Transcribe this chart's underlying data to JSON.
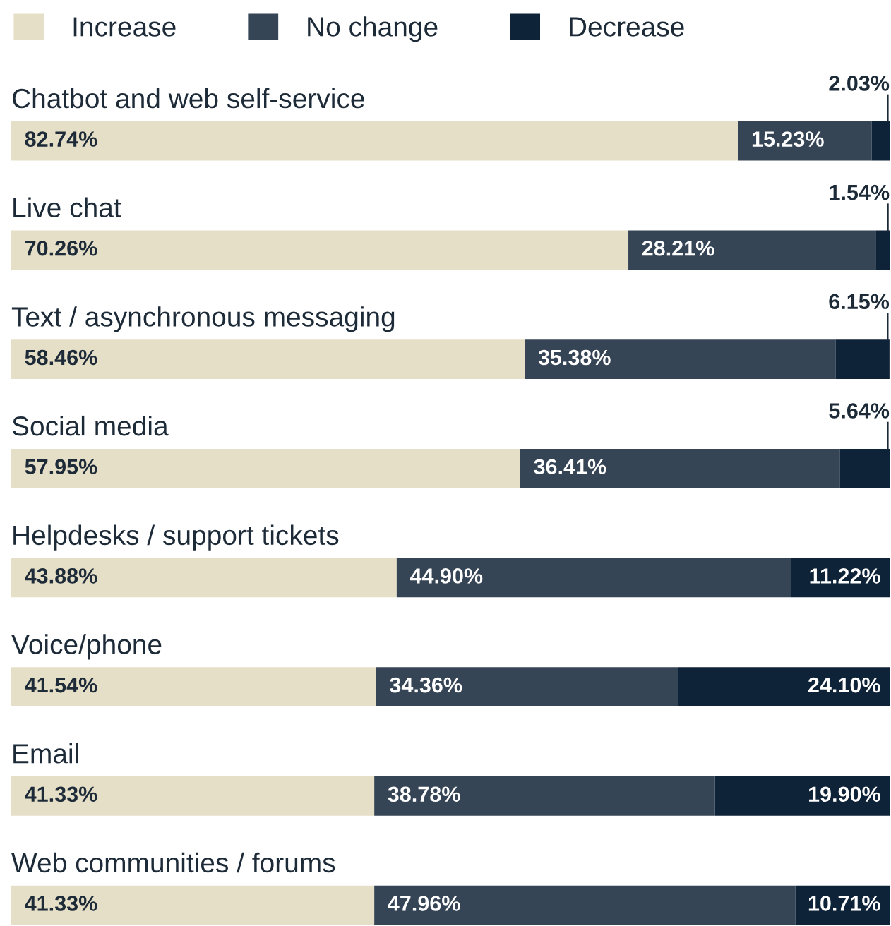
{
  "chart_data": {
    "type": "bar",
    "orientation": "horizontal",
    "stacked": true,
    "legend": "top left",
    "tick_labels": false,
    "xlim": [
      0,
      100
    ],
    "categories": [
      "Chatbot and web self-service",
      "Live chat",
      "Text / asynchronous messaging",
      "Social media",
      "Helpdesks / support tickets",
      "Voice/phone",
      "Email",
      "Web communities / forums"
    ],
    "series": [
      {
        "name": "Increase",
        "color": "#e6dfc7",
        "values": [
          82.74,
          70.26,
          58.46,
          57.95,
          43.88,
          41.54,
          41.33,
          41.33
        ],
        "value_labels": [
          "82.74%",
          "70.26%",
          "58.46%",
          "57.95%",
          "43.88%",
          "41.54%",
          "41.33%",
          "41.33%"
        ]
      },
      {
        "name": "No change",
        "color": "#364555",
        "values": [
          15.23,
          28.21,
          35.38,
          36.41,
          44.9,
          34.36,
          38.78,
          47.96
        ],
        "value_labels": [
          "15.23%",
          "28.21%",
          "35.38%",
          "36.41%",
          "44.90%",
          "34.36%",
          "38.78%",
          "47.96%"
        ]
      },
      {
        "name": "Decrease",
        "color": "#0e2238",
        "values": [
          2.03,
          1.54,
          6.15,
          5.64,
          11.22,
          24.1,
          19.9,
          10.71
        ],
        "value_labels": [
          "2.03%",
          "1.54%",
          "6.15%",
          "5.64%",
          "11.22%",
          "24.10%",
          "19.90%",
          "10.71%"
        ]
      }
    ]
  }
}
